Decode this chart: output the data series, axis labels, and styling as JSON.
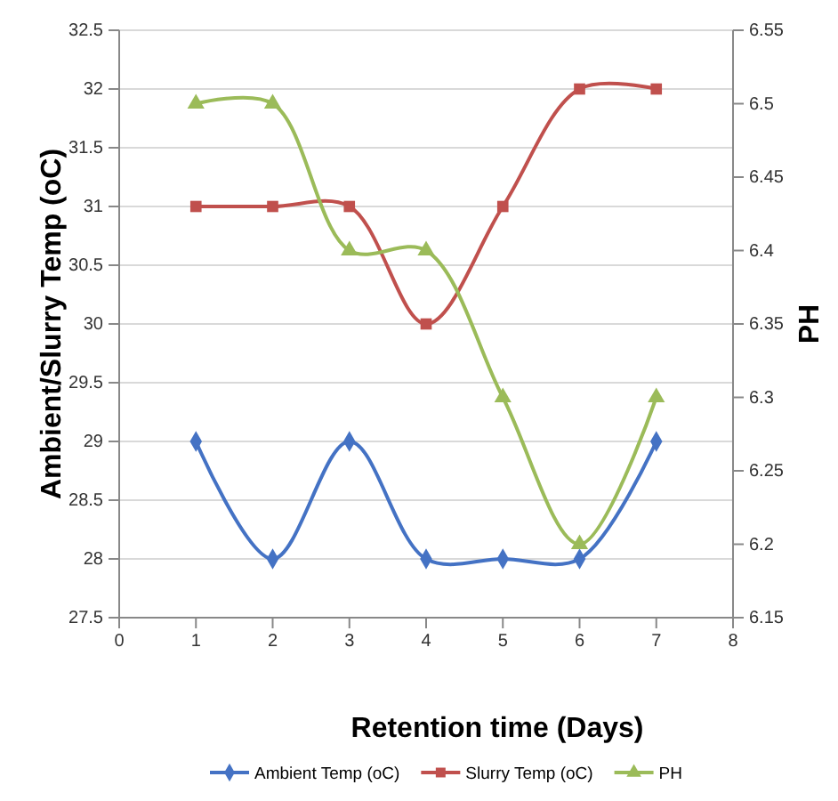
{
  "chart_data": {
    "type": "line",
    "xlabel": "Retention time (Days)",
    "ylabel": "Ambient/Slurry Temp (oC)",
    "y2label": "PH",
    "x": [
      1,
      2,
      3,
      4,
      5,
      6,
      7
    ],
    "xlim": [
      0,
      8
    ],
    "xticks": [
      0,
      1,
      2,
      3,
      4,
      5,
      6,
      7,
      8
    ],
    "ylim": [
      27.5,
      32.5
    ],
    "yticks": [
      27.5,
      28,
      28.5,
      29,
      29.5,
      30,
      30.5,
      31,
      31.5,
      32,
      32.5
    ],
    "y2lim": [
      6.15,
      6.55
    ],
    "y2ticks": [
      6.15,
      6.2,
      6.25,
      6.3,
      6.35,
      6.4,
      6.45,
      6.5,
      6.55
    ],
    "grid": "y",
    "legend": "bottom",
    "series": [
      {
        "name": "Ambient Temp (oC)",
        "color": "#4472c4",
        "marker": "diamond",
        "values": [
          29,
          28,
          29,
          28,
          28,
          28,
          29
        ]
      },
      {
        "name": "Slurry Temp (oC)",
        "color": "#c0504d",
        "marker": "square",
        "values": [
          31,
          31,
          31,
          30,
          31,
          32,
          32
        ]
      },
      {
        "name": "PH",
        "color": "#9bbb59",
        "marker": "triangle",
        "axis": "y2",
        "values": [
          6.5,
          6.5,
          6.4,
          6.4,
          6.3,
          6.2,
          6.3
        ]
      }
    ]
  }
}
